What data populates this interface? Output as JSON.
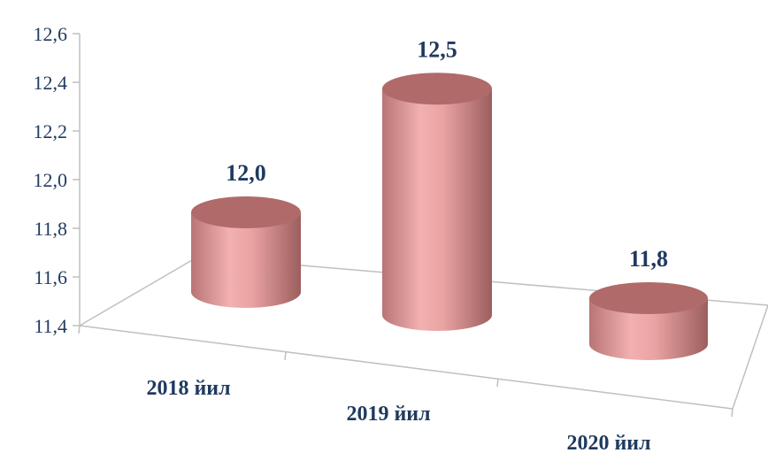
{
  "chart_data": {
    "type": "bar",
    "style": "3d-cylinder",
    "categories": [
      "2018 йил",
      "2019 йил",
      "2020 йил"
    ],
    "values": [
      12.0,
      12.5,
      11.8
    ],
    "data_labels": [
      "12,0",
      "12,5",
      "11,8"
    ],
    "ylim": [
      11.4,
      12.6
    ],
    "yticks": [
      "11,4",
      "11,6",
      "11,8",
      "12,0",
      "12,2",
      "12,4",
      "12,6"
    ],
    "grid": false,
    "legend": "none",
    "colors": {
      "bar_body": "#e8a0a0",
      "bar_top": "#b06a6a",
      "text": "#1f3a5f",
      "axis": "#c0c0c0"
    }
  }
}
